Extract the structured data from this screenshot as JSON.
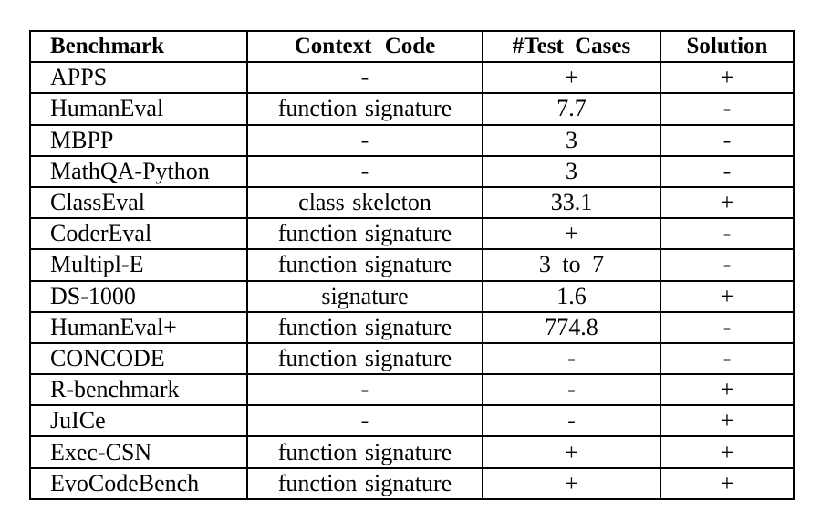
{
  "table": {
    "headers": [
      "Benchmark",
      "Context Code",
      "#Test Cases",
      "Solution"
    ],
    "rows": [
      [
        "APPS",
        "-",
        "+",
        "+"
      ],
      [
        "HumanEval",
        "function signature",
        "7.7",
        "-"
      ],
      [
        "MBPP",
        "-",
        "3",
        "-"
      ],
      [
        "MathQA-Python",
        "-",
        "3",
        "-"
      ],
      [
        "ClassEval",
        "class skeleton",
        "33.1",
        "+"
      ],
      [
        "CoderEval",
        "function signature",
        "+",
        "-"
      ],
      [
        "Multipl-E",
        "function signature",
        "3 to 7",
        "-"
      ],
      [
        "DS-1000",
        "signature",
        "1.6",
        "+"
      ],
      [
        "HumanEval+",
        "function signature",
        "774.8",
        "-"
      ],
      [
        "CONCODE",
        "function signature",
        "-",
        "-"
      ],
      [
        "R-benchmark",
        "-",
        "-",
        "+"
      ],
      [
        "JuICe",
        "-",
        "-",
        "+"
      ],
      [
        "Exec-CSN",
        "function signature",
        "+",
        "+"
      ],
      [
        "EvoCodeBench",
        "function signature",
        "+",
        "+"
      ]
    ]
  }
}
